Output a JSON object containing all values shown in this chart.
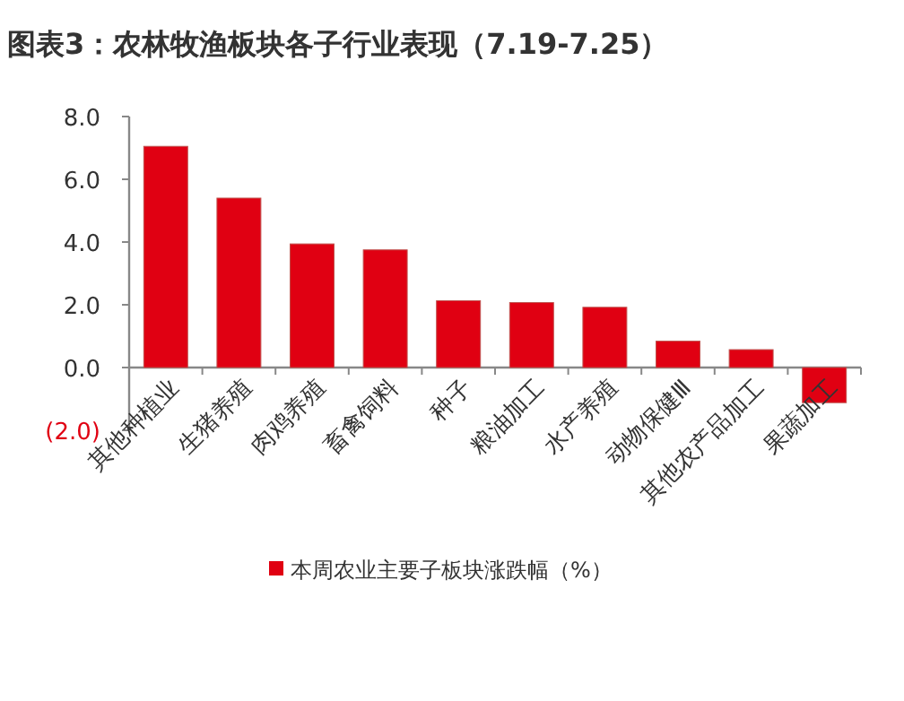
{
  "chart_data": {
    "type": "bar",
    "title": "图表3：农林牧渔板块各子行业表现（7.19-7.25）",
    "categories": [
      "其他种植业",
      "生猪养殖",
      "肉鸡养殖",
      "畜禽饲料",
      "种子",
      "粮油加工",
      "水产养殖",
      "动物保健Ⅲ",
      "其他农产品加工",
      "果蔬加工"
    ],
    "series": [
      {
        "name": "本周农业主要子板块涨跌幅（%）",
        "color": "#e00012",
        "values": [
          7.05,
          5.4,
          3.94,
          3.75,
          2.13,
          2.07,
          1.92,
          0.84,
          0.57,
          -1.12
        ]
      }
    ],
    "ylim": [
      -2,
      8
    ],
    "yticks": [
      {
        "value": -2,
        "label": "(2.0)"
      },
      {
        "value": 0,
        "label": "0.0"
      },
      {
        "value": 2,
        "label": "2.0"
      },
      {
        "value": 4,
        "label": "4.0"
      },
      {
        "value": 6,
        "label": "6.0"
      },
      {
        "value": 8,
        "label": "8.0"
      }
    ],
    "legend": "bottom",
    "grid": false
  }
}
